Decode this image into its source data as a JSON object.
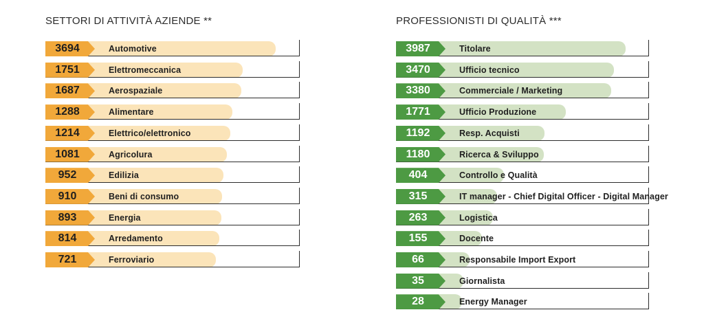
{
  "chart_data": [
    {
      "type": "bar",
      "title": "SETTORI DI ATTIVITÀ AZIENDE **",
      "categories": [
        "Automotive",
        "Elettromeccanica",
        "Aerospaziale",
        "Alimentare",
        "Elettrico/elettronico",
        "Agricolura",
        "Edilizia",
        "Beni di consumo",
        "Energia",
        "Arredamento",
        "Ferroviario"
      ],
      "values": [
        3694,
        1751,
        1687,
        1288,
        1214,
        1081,
        952,
        910,
        893,
        814,
        721
      ],
      "value_labels": [
        "3694",
        "1751",
        "1687",
        "1288",
        "1214",
        "1081",
        "952",
        "910",
        "893",
        "814",
        "721"
      ],
      "colors": {
        "tag": "#f1a83a",
        "bar": "#fbe4b9"
      }
    },
    {
      "type": "bar",
      "title": "PROFESSIONISTI DI QUALITÀ ***",
      "categories": [
        "Titolare",
        "Ufficio tecnico",
        "Commerciale / Marketing",
        "Ufficio Produzione",
        "Resp. Acquisti",
        "Ricerca & Sviluppo",
        "Controllo e Qualità",
        "IT manager - Chief Digital Officer - Digital Manager",
        "Logistica",
        "Docente",
        "Responsabile Import Export",
        "Giornalista",
        "Energy Manager"
      ],
      "values": [
        3987,
        3470,
        3380,
        1771,
        1192,
        1180,
        404,
        315,
        263,
        155,
        66,
        35,
        28
      ],
      "value_labels": [
        "3987",
        "3470",
        "3380",
        "1771",
        "1192",
        "1180",
        "404",
        "315",
        "263",
        "155",
        "66",
        "35",
        "28"
      ],
      "colors": {
        "tag": "#4d9a43",
        "bar": "#d3e2c4"
      }
    }
  ]
}
